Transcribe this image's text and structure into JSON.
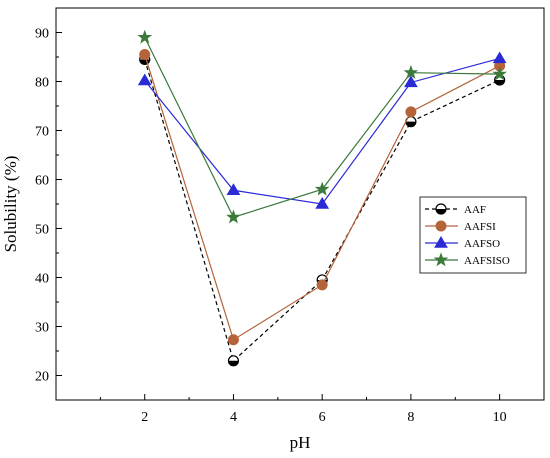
{
  "chart_data": {
    "type": "line",
    "xlabel": "pH",
    "ylabel": "Solubility (%)",
    "x": [
      2,
      4,
      6,
      8,
      10
    ],
    "xlim": [
      0,
      11
    ],
    "ylim": [
      15,
      95
    ],
    "xticks": [
      2,
      4,
      6,
      8,
      10
    ],
    "yticks": [
      20,
      30,
      40,
      50,
      60,
      70,
      80,
      90
    ],
    "grid": false,
    "legend_position": "right",
    "series": [
      {
        "name": "AAF",
        "values": [
          84.5,
          23.0,
          39.5,
          71.8,
          80.3
        ],
        "color": "#000000",
        "marker": "half-circle",
        "dash": "dashed"
      },
      {
        "name": "AAFSI",
        "values": [
          85.5,
          27.3,
          38.5,
          73.8,
          83.2
        ],
        "color": "#b5643a",
        "marker": "circle",
        "dash": "solid"
      },
      {
        "name": "AAFSO",
        "values": [
          80.2,
          57.8,
          55.0,
          79.8,
          84.7
        ],
        "color": "#2b2bd6",
        "marker": "triangle",
        "dash": "solid"
      },
      {
        "name": "AAFSISO",
        "values": [
          89.0,
          52.3,
          58.0,
          81.8,
          81.5
        ],
        "color": "#3b7a3b",
        "marker": "star",
        "dash": "solid"
      }
    ]
  }
}
